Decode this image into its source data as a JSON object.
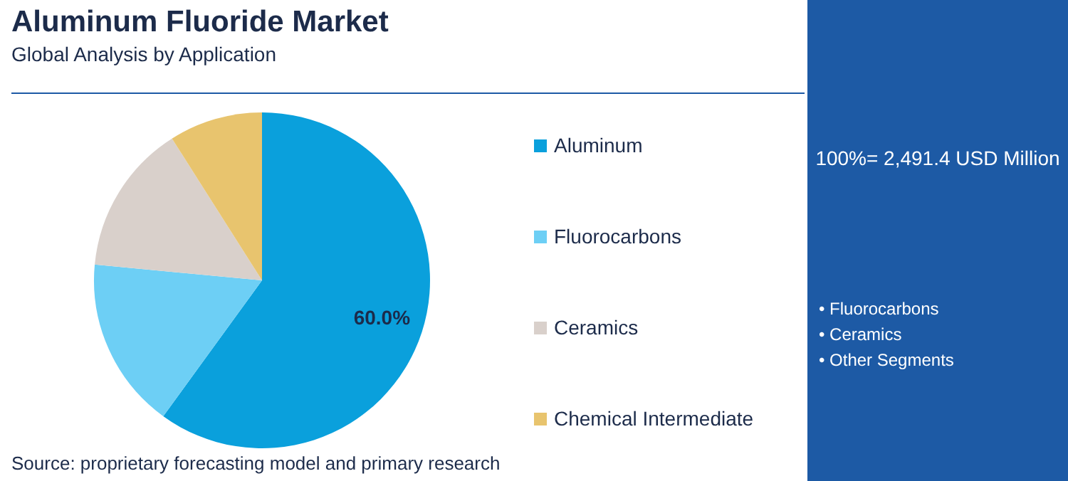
{
  "chart_data": {
    "type": "pie",
    "title": "Aluminum Fluoride Market",
    "subtitle": "Global Analysis by Application",
    "categories": [
      "Aluminum",
      "Fluorocarbons",
      "Ceramics",
      "Chemical Intermediate"
    ],
    "values": [
      60,
      16.5,
      14.5,
      9
    ],
    "colors": [
      "#0aa0dc",
      "#6dcff5",
      "#d9d0cb",
      "#e8c46e"
    ],
    "value_labels": [
      "60.0%",
      null,
      null,
      null
    ],
    "legend": "right",
    "annotations": [
      "100%= 2,491.4 USD Million",
      "• Fluorocarbons",
      "• Ceramics",
      "• Other Segments",
      "Source: proprietary forecasting model and primary research"
    ]
  }
}
